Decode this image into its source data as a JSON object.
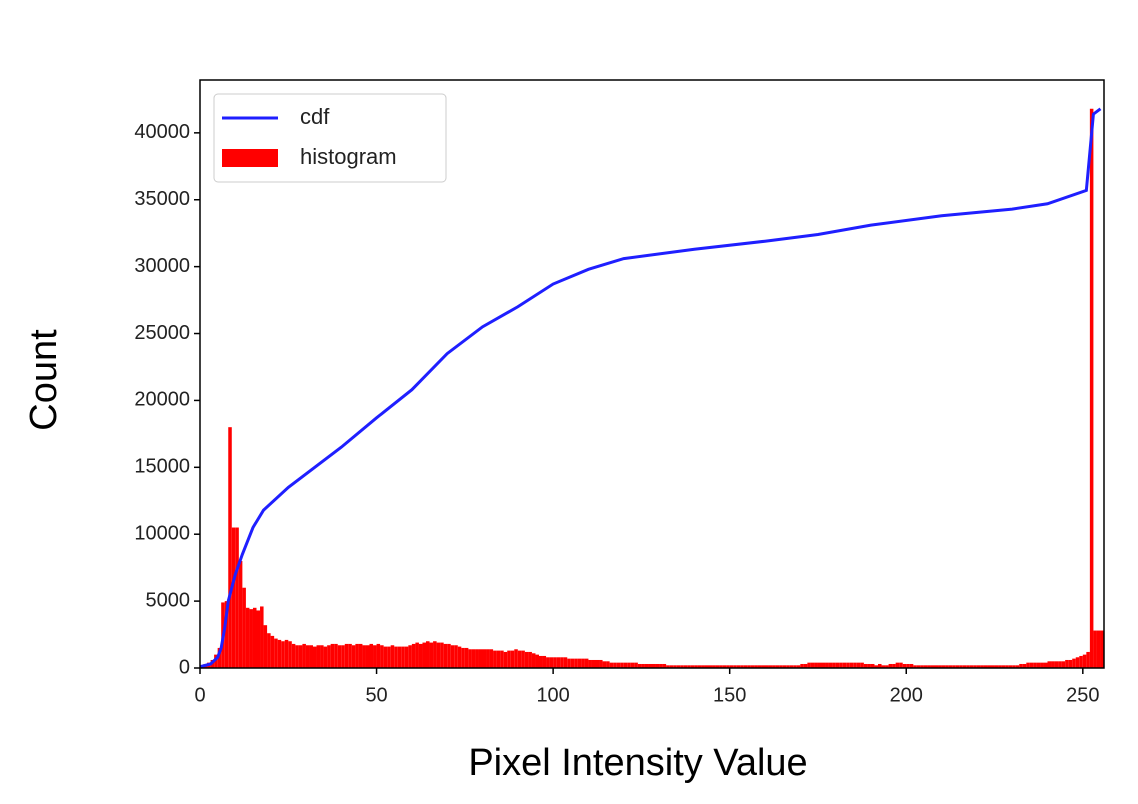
{
  "chart_data": {
    "type": "histogram",
    "xlabel": "Pixel Intensity Value",
    "ylabel": "Count",
    "xlim": [
      0,
      256
    ],
    "ylim": [
      0,
      43950
    ],
    "xticks": [
      0,
      50,
      100,
      150,
      200,
      250
    ],
    "yticks": [
      0,
      5000,
      10000,
      15000,
      20000,
      25000,
      30000,
      35000,
      40000
    ],
    "legend": "upper left",
    "series": [
      {
        "name": "cdf",
        "type": "line",
        "color": "#1f1fff",
        "x": [
          0,
          3,
          5,
          6,
          7,
          8,
          10,
          12,
          15,
          18,
          25,
          40,
          50,
          60,
          70,
          80,
          90,
          100,
          110,
          120,
          140,
          160,
          175,
          190,
          210,
          230,
          240,
          251,
          253,
          255
        ],
        "values": [
          100,
          300,
          800,
          1500,
          3000,
          5000,
          7000,
          8500,
          10500,
          11800,
          13500,
          16500,
          18700,
          20800,
          23500,
          25500,
          27000,
          28700,
          29800,
          30600,
          31300,
          31900,
          32400,
          33100,
          33800,
          34300,
          34700,
          35700,
          41400,
          41800
        ]
      },
      {
        "name": "histogram",
        "type": "histogram",
        "color": "#ff0000",
        "bins": [
          0,
          1,
          2,
          3,
          4,
          5,
          6,
          7,
          8,
          9,
          10,
          11,
          12,
          13,
          14,
          15,
          16,
          17,
          18,
          19,
          20,
          21,
          22,
          23,
          24,
          25,
          26,
          27,
          28,
          29,
          30,
          31,
          32,
          33,
          34,
          35,
          36,
          37,
          38,
          39,
          40,
          41,
          42,
          43,
          44,
          45,
          46,
          47,
          48,
          49,
          50,
          51,
          52,
          53,
          54,
          55,
          56,
          57,
          58,
          59,
          60,
          61,
          62,
          63,
          64,
          65,
          66,
          67,
          68,
          69,
          70,
          71,
          72,
          73,
          74,
          75,
          76,
          77,
          78,
          79,
          80,
          81,
          82,
          83,
          84,
          85,
          86,
          87,
          88,
          89,
          90,
          91,
          92,
          93,
          94,
          95,
          96,
          97,
          98,
          99,
          100,
          101,
          102,
          103,
          104,
          105,
          106,
          107,
          108,
          109,
          110,
          111,
          112,
          113,
          114,
          115,
          116,
          117,
          118,
          119,
          120,
          121,
          122,
          123,
          124,
          125,
          126,
          127,
          128,
          129,
          130,
          131,
          132,
          133,
          134,
          135,
          136,
          137,
          138,
          139,
          140,
          141,
          142,
          143,
          144,
          145,
          146,
          147,
          148,
          149,
          150,
          151,
          152,
          153,
          154,
          155,
          156,
          157,
          158,
          159,
          160,
          161,
          162,
          163,
          164,
          165,
          166,
          167,
          168,
          169,
          170,
          171,
          172,
          173,
          174,
          175,
          176,
          177,
          178,
          179,
          180,
          181,
          182,
          183,
          184,
          185,
          186,
          187,
          188,
          189,
          190,
          191,
          192,
          193,
          194,
          195,
          196,
          197,
          198,
          199,
          200,
          201,
          202,
          203,
          204,
          205,
          206,
          207,
          208,
          209,
          210,
          211,
          212,
          213,
          214,
          215,
          216,
          217,
          218,
          219,
          220,
          221,
          222,
          223,
          224,
          225,
          226,
          227,
          228,
          229,
          230,
          231,
          232,
          233,
          234,
          235,
          236,
          237,
          238,
          239,
          240,
          241,
          242,
          243,
          244,
          245,
          246,
          247,
          248,
          249,
          250,
          251,
          252,
          253,
          254,
          255,
          256
        ],
        "values": [
          200,
          300,
          400,
          600,
          1000,
          1500,
          4900,
          5000,
          18000,
          10500,
          10500,
          8000,
          6000,
          4500,
          4400,
          4500,
          4300,
          4600,
          3200,
          2600,
          2400,
          2200,
          2100,
          2000,
          2100,
          2000,
          1800,
          1700,
          1700,
          1800,
          1700,
          1700,
          1600,
          1700,
          1700,
          1600,
          1700,
          1800,
          1800,
          1700,
          1700,
          1800,
          1800,
          1700,
          1800,
          1800,
          1700,
          1700,
          1800,
          1700,
          1800,
          1700,
          1600,
          1600,
          1700,
          1600,
          1600,
          1600,
          1600,
          1700,
          1800,
          1900,
          1800,
          1900,
          2000,
          1900,
          2000,
          1900,
          1900,
          1800,
          1800,
          1700,
          1700,
          1600,
          1500,
          1500,
          1400,
          1400,
          1400,
          1400,
          1400,
          1400,
          1400,
          1300,
          1300,
          1300,
          1200,
          1300,
          1300,
          1400,
          1300,
          1300,
          1200,
          1200,
          1100,
          1000,
          900,
          900,
          800,
          800,
          800,
          800,
          800,
          800,
          700,
          700,
          700,
          700,
          700,
          700,
          600,
          600,
          600,
          600,
          500,
          500,
          400,
          400,
          400,
          400,
          400,
          400,
          400,
          400,
          300,
          300,
          300,
          300,
          300,
          300,
          300,
          300,
          200,
          200,
          200,
          200,
          200,
          200,
          200,
          200,
          200,
          200,
          200,
          200,
          200,
          200,
          200,
          200,
          200,
          200,
          200,
          200,
          200,
          200,
          200,
          200,
          200,
          200,
          200,
          200,
          200,
          200,
          200,
          200,
          200,
          200,
          200,
          200,
          200,
          200,
          300,
          300,
          400,
          400,
          400,
          400,
          400,
          400,
          400,
          400,
          400,
          400,
          400,
          400,
          400,
          400,
          400,
          400,
          300,
          300,
          300,
          200,
          300,
          200,
          200,
          300,
          300,
          400,
          400,
          300,
          300,
          300,
          200,
          200,
          200,
          200,
          200,
          200,
          200,
          200,
          200,
          200,
          200,
          200,
          200,
          200,
          200,
          200,
          200,
          200,
          200,
          200,
          200,
          200,
          200,
          200,
          200,
          200,
          200,
          200,
          200,
          200,
          300,
          300,
          400,
          400,
          400,
          400,
          400,
          400,
          500,
          500,
          500,
          500,
          500,
          600,
          600,
          700,
          800,
          900,
          1000,
          1200,
          41800,
          2800,
          2800,
          2800
        ]
      }
    ]
  }
}
